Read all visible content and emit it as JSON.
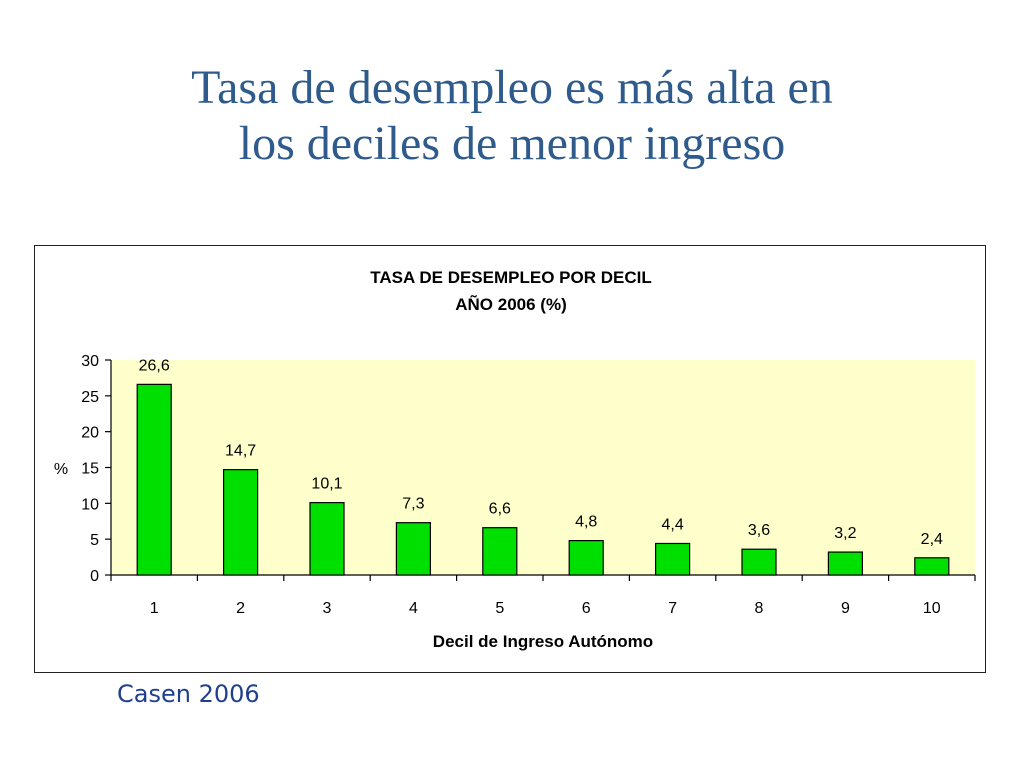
{
  "slide": {
    "title_line1": "Tasa de desempleo es más alta en",
    "title_line2": "los deciles de menor ingreso",
    "source": "Casen 2006"
  },
  "chart_data": {
    "type": "bar",
    "title": "TASA DE DESEMPLEO POR DECIL",
    "subtitle": "AÑO 2006 (%)",
    "xlabel": "Decil de Ingreso Autónomo",
    "ylabel": "%",
    "categories": [
      "1",
      "2",
      "3",
      "4",
      "5",
      "6",
      "7",
      "8",
      "9",
      "10"
    ],
    "values": [
      26.6,
      14.7,
      10.1,
      7.3,
      6.6,
      4.8,
      4.4,
      3.6,
      3.2,
      2.4
    ],
    "value_labels": [
      "26,6",
      "14,7",
      "10,1",
      "7,3",
      "6,6",
      "4,8",
      "4,4",
      "3,6",
      "3,2",
      "2,4"
    ],
    "ylim": [
      0,
      30
    ],
    "yticks": [
      0,
      5,
      10,
      15,
      20,
      25,
      30
    ],
    "grid": false,
    "legend": "none",
    "colors": {
      "bar_fill": "#00e000",
      "bar_stroke": "#000000",
      "plot_background": "#ffffcc"
    }
  }
}
